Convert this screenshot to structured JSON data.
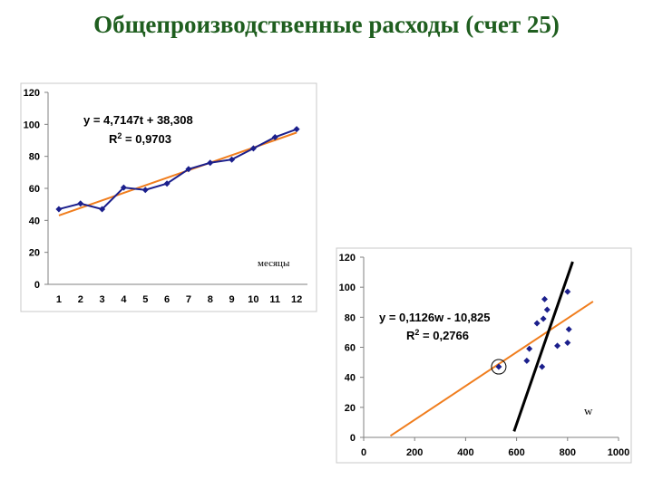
{
  "slide": {
    "title": "Общепроизводственные расходы (счет 25)"
  },
  "chart_data": [
    {
      "type": "line",
      "x": [
        1,
        2,
        3,
        4,
        5,
        6,
        7,
        8,
        9,
        10,
        11,
        12
      ],
      "series": [
        {
          "values": [
            47,
            50.5,
            47,
            60.5,
            59,
            63,
            72,
            76,
            78,
            85,
            92,
            97
          ],
          "color": "#1b1f8c"
        }
      ],
      "trendline": {
        "slope": 4.7147,
        "intercept": 38.308,
        "color": "#f07d1d"
      },
      "equation": "y = 4,7147t + 38,308",
      "r2_prefix": "R",
      "r2_sup": "2",
      "r2_value": " = 0,9703",
      "ylim": [
        0,
        120
      ],
      "yticks": [
        0,
        20,
        40,
        60,
        80,
        100,
        120
      ],
      "xticks": [
        1,
        2,
        3,
        4,
        5,
        6,
        7,
        8,
        9,
        10,
        11,
        12
      ],
      "annotation": "месяцы",
      "grid": false
    },
    {
      "type": "scatter",
      "points": [
        {
          "x": 530,
          "y": 47
        },
        {
          "x": 640,
          "y": 51
        },
        {
          "x": 650,
          "y": 59
        },
        {
          "x": 680,
          "y": 76
        },
        {
          "x": 700,
          "y": 47
        },
        {
          "x": 705,
          "y": 79
        },
        {
          "x": 710,
          "y": 92
        },
        {
          "x": 720,
          "y": 85
        },
        {
          "x": 760,
          "y": 61
        },
        {
          "x": 800,
          "y": 97
        },
        {
          "x": 800,
          "y": 63
        },
        {
          "x": 805,
          "y": 72
        }
      ],
      "point_color": "#1b1f8c",
      "trendline": {
        "slope": 0.1126,
        "intercept": -10.825,
        "x_from": 105,
        "x_to": 900,
        "color": "#f07d1d"
      },
      "equation": "y = 0,1126w - 10,825",
      "r2_prefix": "R",
      "r2_sup": "2",
      "r2_value": " = 0,2766",
      "xlim": [
        0,
        1000
      ],
      "ylim": [
        0,
        120
      ],
      "xticks": [
        0,
        200,
        400,
        600,
        800,
        1000
      ],
      "yticks": [
        0,
        20,
        40,
        60,
        80,
        100,
        120
      ],
      "annotation": "w",
      "highlighted_point": {
        "x": 530,
        "y": 47
      },
      "drawn_line": {
        "from": {
          "x": 590,
          "y": 4
        },
        "to": {
          "x": 820,
          "y": 117
        },
        "color": "#000000"
      },
      "grid": false
    }
  ]
}
